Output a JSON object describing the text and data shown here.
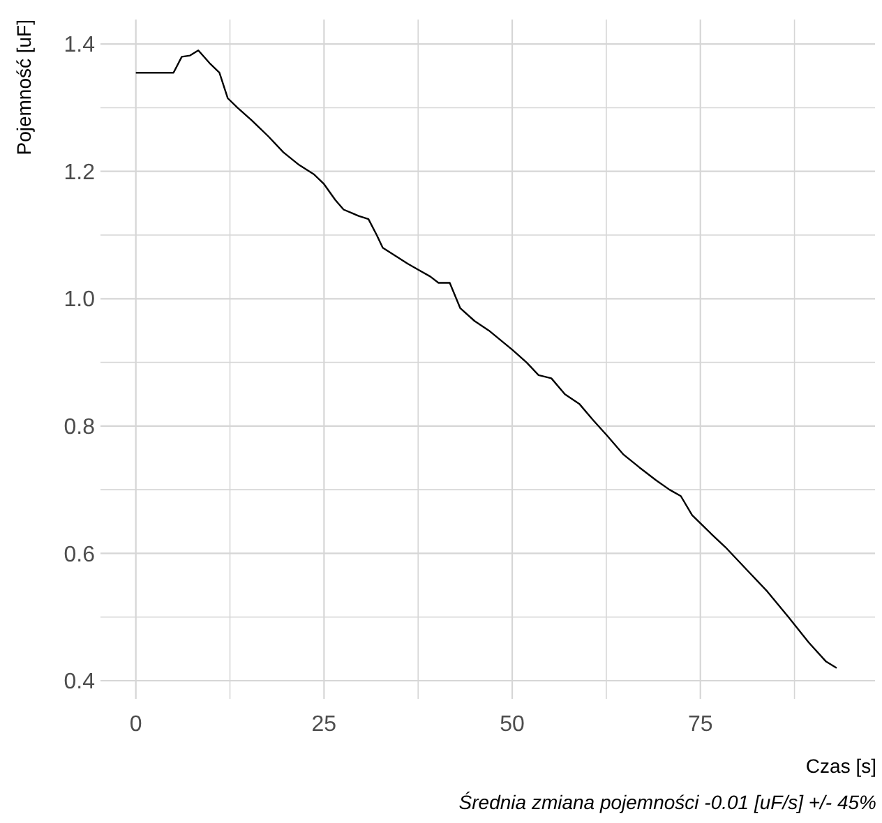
{
  "chart_data": {
    "type": "line",
    "xlabel": "Czas [s]",
    "ylabel": "Pojemność [uF]",
    "annotations": [
      "Średnia zmiana pojemności -0.01 [uF/s] +/- 45%"
    ],
    "xlim": [
      -4.7,
      98.2
    ],
    "ylim": [
      0.3715,
      1.4385
    ],
    "xticks": [
      0,
      {
        "value": 12.5,
        "label": null
      },
      25,
      {
        "value": 37.5,
        "label": null
      },
      50,
      {
        "value": 62.5,
        "label": null
      },
      75,
      {
        "value": 87.5,
        "label": null
      }
    ],
    "yticks": [
      0.4,
      {
        "value": 0.5,
        "label": null
      },
      0.6,
      {
        "value": 0.7,
        "label": null
      },
      0.8,
      {
        "value": 0.9,
        "label": null
      },
      {
        "value": 1.0,
        "label": "1.0"
      },
      {
        "value": 1.1,
        "label": null
      },
      1.2,
      {
        "value": 1.3,
        "label": null
      },
      1.4
    ],
    "grid": true,
    "marker": "none",
    "line_style": "solid",
    "series": [
      {
        "color": "#000000",
        "x": [
          0,
          5,
          6.1,
          7.2,
          8.3,
          9.8,
          11.1,
          12.2,
          13.5,
          15.4,
          17.6,
          19.6,
          21.7,
          23.7,
          25,
          26.5,
          27.6,
          29.6,
          30.9,
          32,
          32.8,
          34.8,
          36.1,
          37.6,
          39.1,
          40.2,
          41.7,
          43.1,
          45,
          46.9,
          50,
          51.9,
          53.5,
          55.2,
          57,
          58.9,
          60.7,
          62.6,
          64.8,
          66.9,
          69.1,
          70.9,
          72.4,
          73.9,
          76.5,
          78.3,
          81.1,
          83.9,
          86.7,
          89.4,
          91.7,
          93.1
        ],
        "values": [
          1.355,
          1.355,
          1.38,
          1.382,
          1.39,
          1.37,
          1.355,
          1.315,
          1.3,
          1.28,
          1.255,
          1.23,
          1.21,
          1.195,
          1.18,
          1.155,
          1.14,
          1.13,
          1.125,
          1.1,
          1.08,
          1.065,
          1.055,
          1.045,
          1.035,
          1.025,
          1.025,
          0.985,
          0.965,
          0.95,
          0.92,
          0.9,
          0.88,
          0.875,
          0.85,
          0.835,
          0.81,
          0.785,
          0.755,
          0.735,
          0.715,
          0.7,
          0.69,
          0.66,
          0.63,
          0.61,
          0.575,
          0.54,
          0.5,
          0.46,
          0.43,
          0.42
        ]
      }
    ]
  }
}
